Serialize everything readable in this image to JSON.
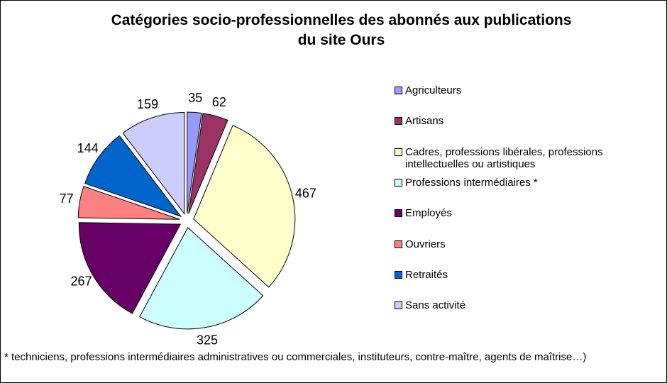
{
  "chart_data": {
    "type": "pie",
    "title": "Catégories socio-professionnelles des abonnés aux publications du site Ours",
    "categories": [
      "Agriculteurs",
      "Artisans",
      "Cadres, professions libérales, professions intellectuelles ou artistiques",
      "Professions intermédiaires *",
      "Employés",
      "Ouvriers",
      "Retraités",
      "Sans activité"
    ],
    "values": [
      35,
      62,
      467,
      325,
      267,
      77,
      144,
      159
    ],
    "colors": [
      "#9999ff",
      "#993366",
      "#ffffcc",
      "#ccffff",
      "#660066",
      "#ff8080",
      "#0066cc",
      "#ccccff"
    ],
    "legend": "right",
    "annotation": "* techniciens,  professions intermédiaires administratives ou commerciales, instituteurs, contre-maître, agents de maîtrise…)"
  }
}
